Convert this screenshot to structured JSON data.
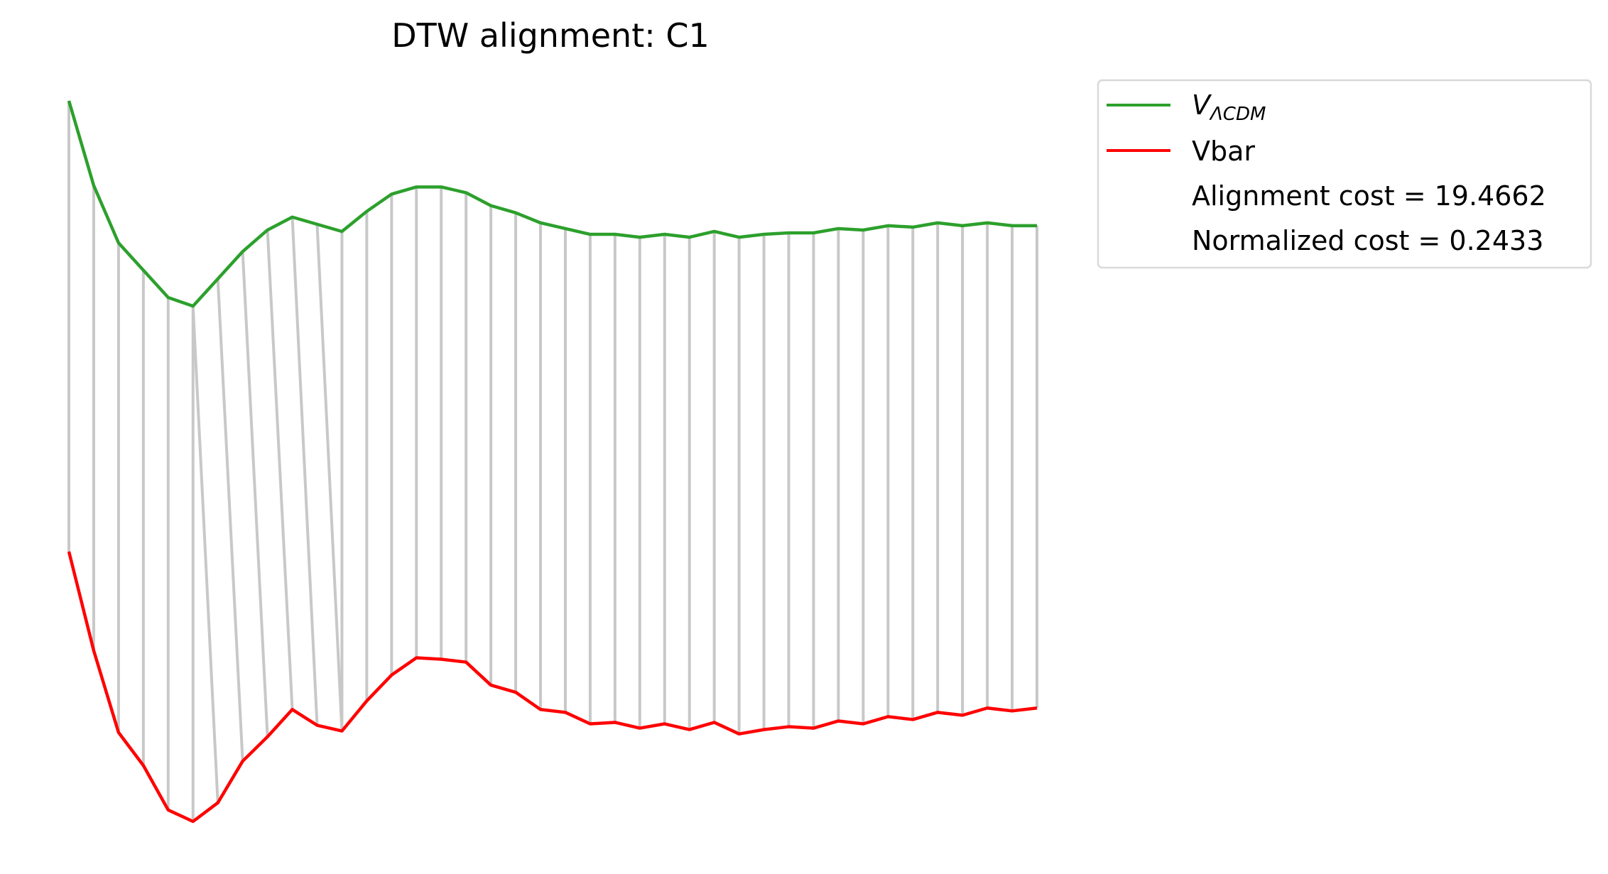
{
  "chart_data": {
    "type": "line",
    "title": "DTW alignment: C1",
    "x": [
      0,
      1,
      2,
      3,
      4,
      5,
      6,
      7,
      8,
      9,
      10,
      11,
      12,
      13,
      14,
      15,
      16,
      17,
      18,
      19,
      20,
      21,
      22,
      23,
      24,
      25,
      26,
      27,
      28,
      29,
      30,
      31,
      32,
      33,
      34,
      35,
      36,
      37,
      38,
      39
    ],
    "series": [
      {
        "name": "V_ΛCDM",
        "color": "#2ca02c",
        "values": [
          0.0,
          -0.59,
          -0.99,
          -1.18,
          -1.37,
          -1.43,
          -1.24,
          -1.05,
          -0.9,
          -0.81,
          -0.86,
          -0.91,
          -0.77,
          -0.65,
          -0.6,
          -0.6,
          -0.64,
          -0.73,
          -0.78,
          -0.85,
          -0.89,
          -0.93,
          -0.93,
          -0.95,
          -0.93,
          -0.95,
          -0.91,
          -0.95,
          -0.93,
          -0.92,
          -0.92,
          -0.89,
          -0.9,
          -0.87,
          -0.88,
          -0.85,
          -0.87,
          -0.85,
          -0.87,
          -0.87
        ]
      },
      {
        "name": "Vbar",
        "color": "#ff0000",
        "values": [
          -3.14,
          -3.83,
          -4.4,
          -4.63,
          -4.94,
          -5.02,
          -4.89,
          -4.6,
          -4.43,
          -4.24,
          -4.35,
          -4.39,
          -4.18,
          -4.0,
          -3.88,
          -3.89,
          -3.91,
          -4.07,
          -4.12,
          -4.24,
          -4.26,
          -4.34,
          -4.33,
          -4.37,
          -4.34,
          -4.38,
          -4.33,
          -4.41,
          -4.38,
          -4.36,
          -4.37,
          -4.32,
          -4.34,
          -4.29,
          -4.31,
          -4.26,
          -4.28,
          -4.23,
          -4.25,
          -4.23
        ]
      }
    ],
    "alignment": [
      [
        0,
        0
      ],
      [
        1,
        1
      ],
      [
        2,
        2
      ],
      [
        3,
        3
      ],
      [
        4,
        4
      ],
      [
        5,
        5
      ],
      [
        5,
        6
      ],
      [
        6,
        7
      ],
      [
        7,
        8
      ],
      [
        8,
        9
      ],
      [
        9,
        10
      ],
      [
        10,
        11
      ],
      [
        11,
        11
      ],
      [
        12,
        12
      ],
      [
        13,
        13
      ],
      [
        14,
        14
      ],
      [
        15,
        15
      ],
      [
        16,
        16
      ],
      [
        17,
        17
      ],
      [
        18,
        18
      ],
      [
        19,
        19
      ],
      [
        20,
        20
      ],
      [
        21,
        21
      ],
      [
        22,
        22
      ],
      [
        23,
        23
      ],
      [
        24,
        24
      ],
      [
        25,
        25
      ],
      [
        26,
        26
      ],
      [
        27,
        27
      ],
      [
        28,
        28
      ],
      [
        29,
        29
      ],
      [
        30,
        30
      ],
      [
        31,
        31
      ],
      [
        32,
        32
      ],
      [
        33,
        33
      ],
      [
        34,
        34
      ],
      [
        35,
        35
      ],
      [
        36,
        36
      ],
      [
        37,
        37
      ],
      [
        38,
        38
      ],
      [
        39,
        39
      ]
    ],
    "alignment_color": "#c8c8c8",
    "legend": {
      "placement": "outside-right-top",
      "entries": [
        {
          "label_main": "V",
          "label_sub": "ΛCDM",
          "color": "#2ca02c"
        },
        {
          "label": "Vbar",
          "color": "#ff0000"
        },
        {
          "label": "Alignment cost = 19.4662"
        },
        {
          "label": "Normalized cost = 0.2433"
        }
      ]
    },
    "axes_visible": false,
    "grid": false
  }
}
